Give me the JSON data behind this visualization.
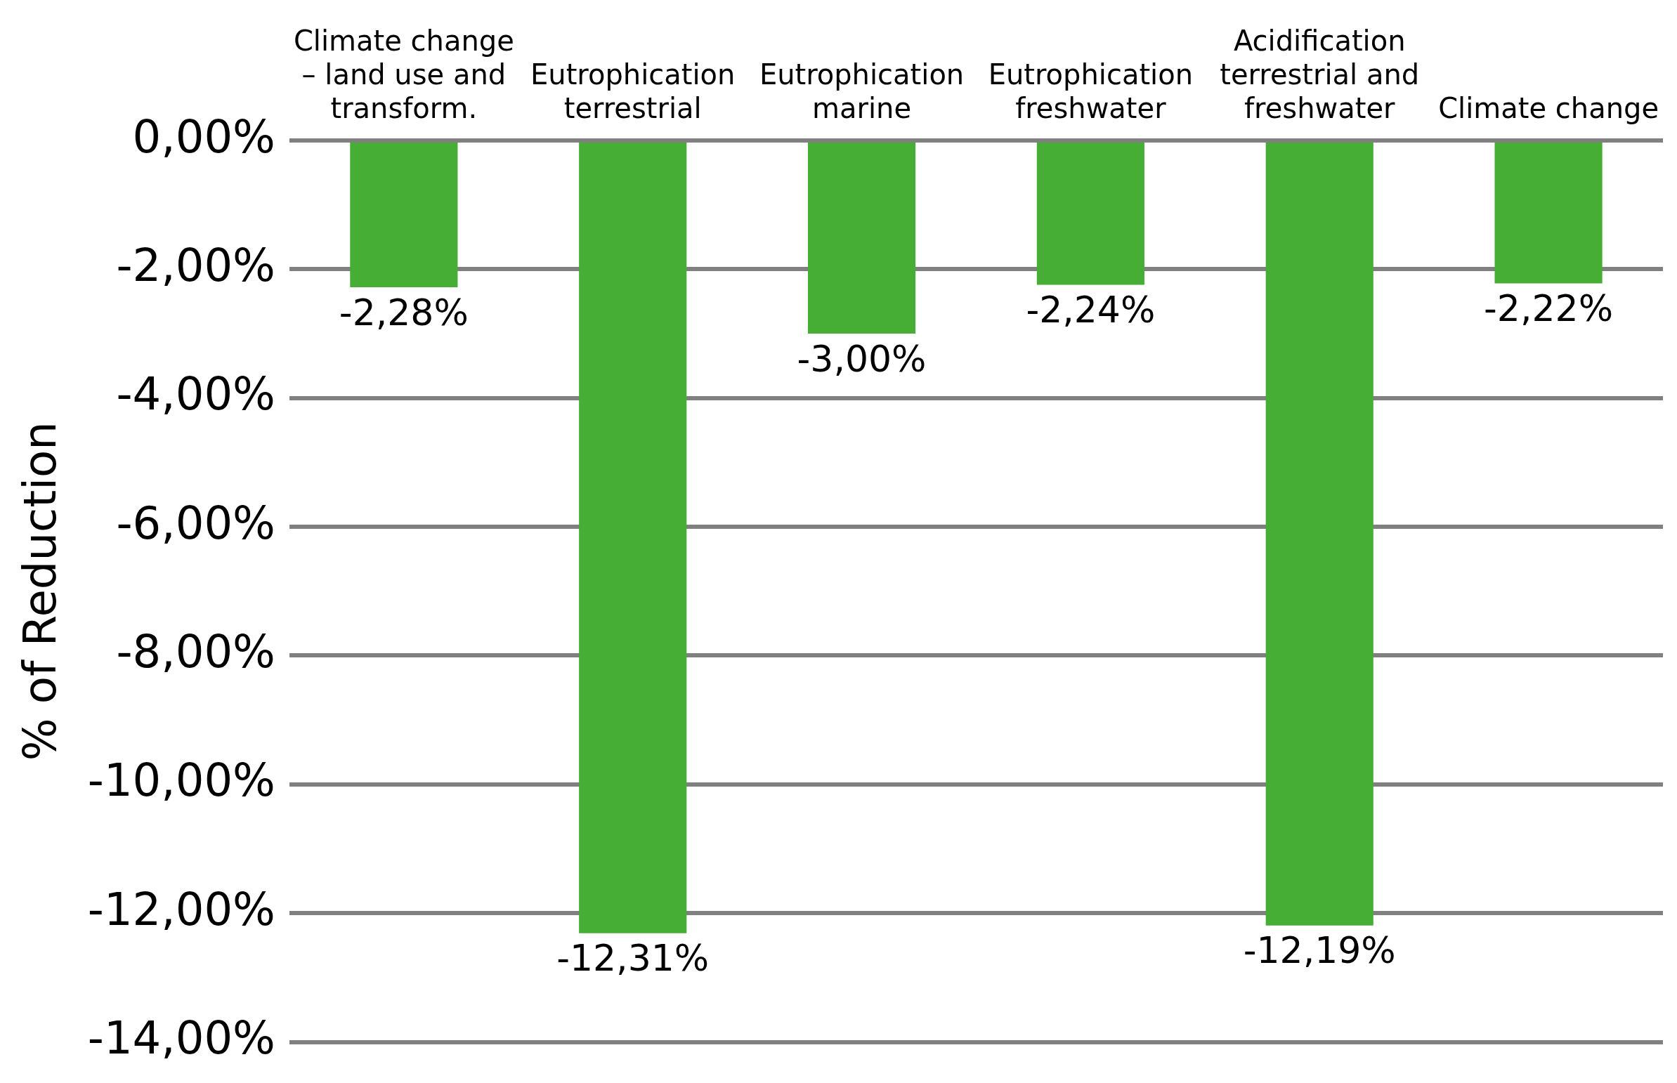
{
  "chart_data": {
    "type": "bar",
    "ylabel": "% of Reduction",
    "categories": [
      "Climate change – land use and transform.",
      "Eutrophication terrestrial",
      "Eutrophication marine",
      "Eutrophication freshwater",
      "Acidification terrestrial and freshwater",
      "Climate change"
    ],
    "values": [
      -2.28,
      -12.31,
      -3.0,
      -2.24,
      -12.19,
      -2.22
    ],
    "value_labels": [
      "-2,28%",
      "-12,31%",
      "-3,00%",
      "-2,24%",
      "-12,19%",
      "-2,22%"
    ],
    "color": "#46ad35",
    "ylim": [
      -14,
      0
    ],
    "yticks": [
      {
        "value": 0,
        "label": "0,00%"
      },
      {
        "value": -2,
        "label": "-2,00%"
      },
      {
        "value": -4,
        "label": "-4,00%"
      },
      {
        "value": -6,
        "label": "-6,00%"
      },
      {
        "value": -8,
        "label": "-8,00%"
      },
      {
        "value": -10,
        "label": "-10,00%"
      },
      {
        "value": -12,
        "label": "-12,00%"
      },
      {
        "value": -14,
        "label": "-14,00%"
      }
    ],
    "grid": "y",
    "legend": false
  }
}
